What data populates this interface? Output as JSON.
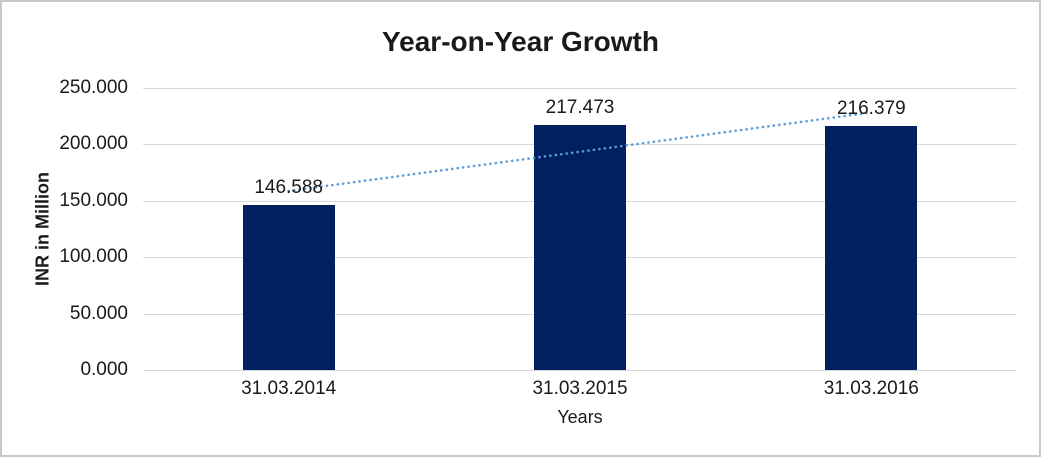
{
  "chart_data": {
    "type": "bar",
    "title": "Year-on-Year Growth",
    "xlabel": "Years",
    "ylabel": "INR in Million",
    "categories": [
      "31.03.2014",
      "31.03.2015",
      "31.03.2016"
    ],
    "series": [
      {
        "name": "INR in Million",
        "type": "column",
        "values": [
          146.588,
          217.473,
          216.379
        ],
        "data_labels": [
          "146.588",
          "217.473",
          "216.379"
        ],
        "color": "#002060"
      },
      {
        "name": "linear-trendline",
        "type": "trendline",
        "style": "dotted",
        "color": "#5b9bd5",
        "endpoint_values": [
          158.7,
          228.3
        ]
      }
    ],
    "y_axis": {
      "min": 0,
      "max": 250,
      "step": 50,
      "tick_labels": [
        "0.000",
        "50.000",
        "100.000",
        "150.000",
        "200.000",
        "250.000"
      ]
    },
    "grid": true,
    "legend": "none",
    "colors": {
      "gridline": "#d9d9d9",
      "border": "#c9c9c9",
      "text": "#1a1a1a"
    }
  }
}
